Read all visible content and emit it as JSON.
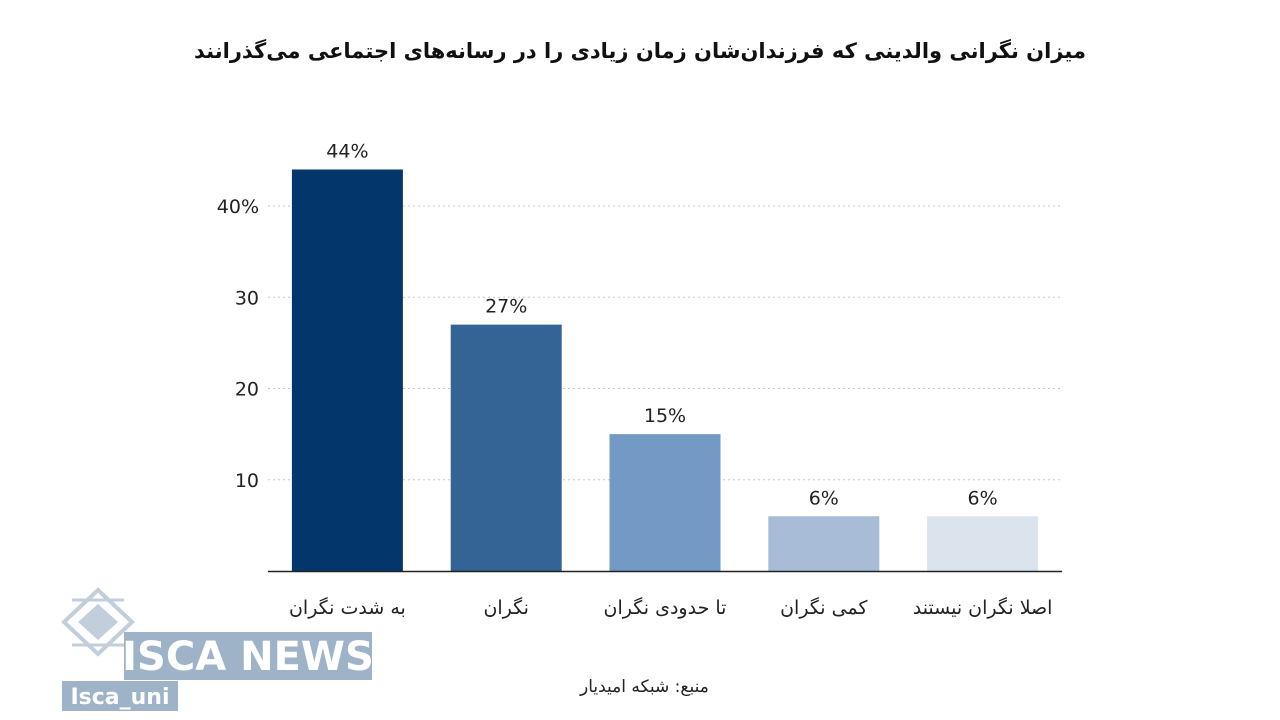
{
  "chart_data": {
    "type": "bar",
    "title": "میزان نگرانی والدینی که فرزندان‌شان زمان زیادی را در رسانه‌های اجتماعی می‌گذرانند",
    "categories": [
      "به شدت نگران",
      "نگران",
      "تا حدودی نگران",
      "کمی نگران",
      "اصلا نگران نیستند"
    ],
    "values": [
      44,
      27,
      15,
      6,
      6
    ],
    "data_labels": [
      "44%",
      "27%",
      "15%",
      "6%",
      "6%"
    ],
    "bar_colors": [
      "#03376b",
      "#346396",
      "#7399c5",
      "#a8bcd8",
      "#dbe3ed"
    ],
    "yticks": [
      10,
      20,
      30,
      40
    ],
    "ytick_labels": [
      "10",
      "20",
      "30",
      "40%"
    ],
    "ylim": [
      0,
      48
    ],
    "grid": "horizontal dotted",
    "xlabel": "",
    "ylabel": ""
  },
  "source": "منبع: شبکه امیدیار",
  "watermark": {
    "brand": "ISCA NEWS",
    "handle": "Isca_uni"
  }
}
